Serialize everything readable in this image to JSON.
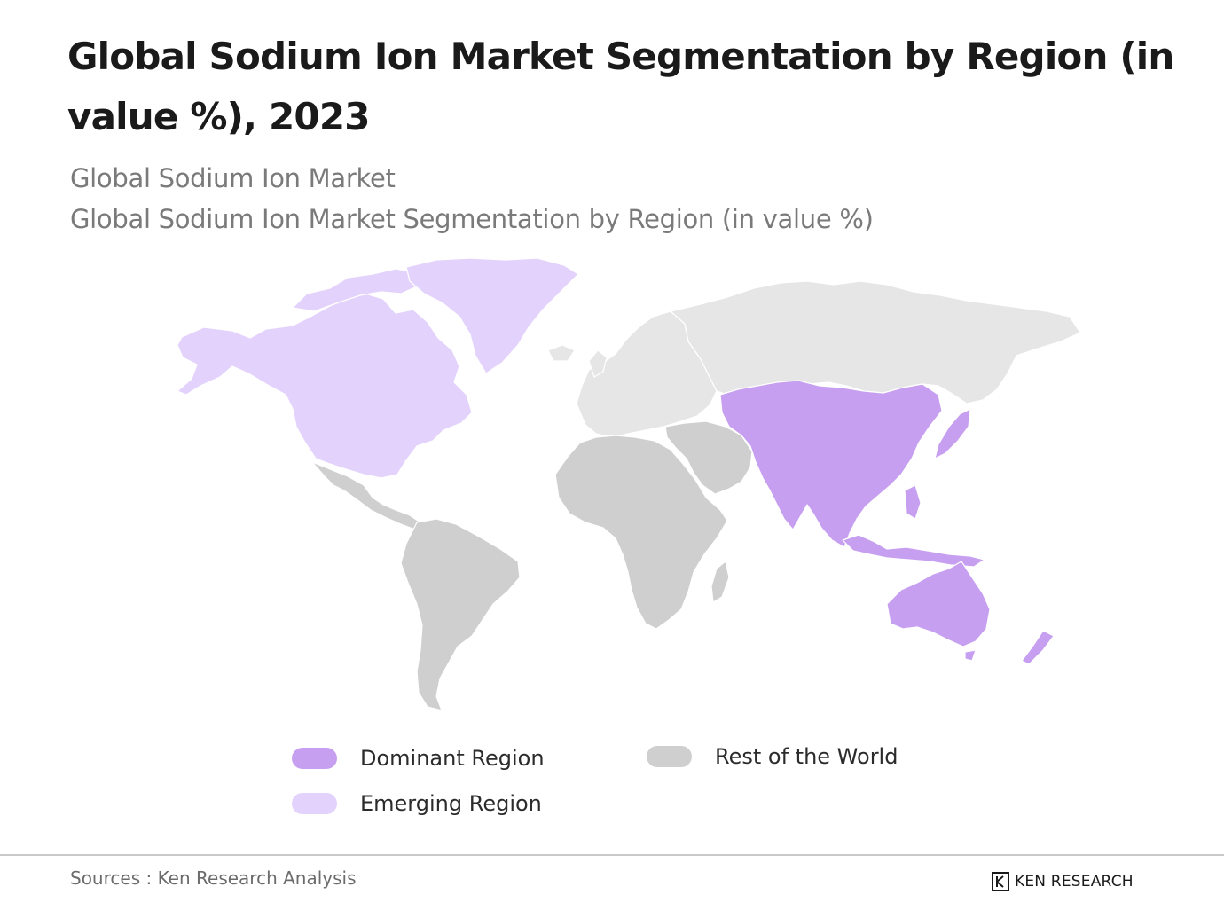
{
  "title": "Global Sodium Ion Market Segmentation by Region (in value %), 2023",
  "subtitle_1": "Global Sodium Ion Market",
  "subtitle_2": "Global Sodium Ion Market Segmentation by Region (in value %)",
  "colors": {
    "dominant": "#c79ff0",
    "emerging": "#e3d3fc",
    "rest": "#cfcfcf",
    "rest_light": "#e6e6e6",
    "border": "#ffffff"
  },
  "regions": {
    "north_america": "emerging",
    "greenland": "emerging",
    "latin_america": "rest",
    "europe": "rest",
    "russia": "rest",
    "middle_east": "rest",
    "africa": "rest",
    "asia_pacific": "dominant",
    "oceania": "dominant"
  },
  "legend": [
    {
      "label": "Dominant Region",
      "key": "dominant"
    },
    {
      "label": "Emerging Region",
      "key": "emerging"
    },
    {
      "label": "Rest of the World",
      "key": "rest"
    }
  ],
  "footer": {
    "sources": "Sources : Ken Research Analysis",
    "brand": "KEN RESEARCH",
    "brand_icon": "ken-research-k-logo"
  }
}
